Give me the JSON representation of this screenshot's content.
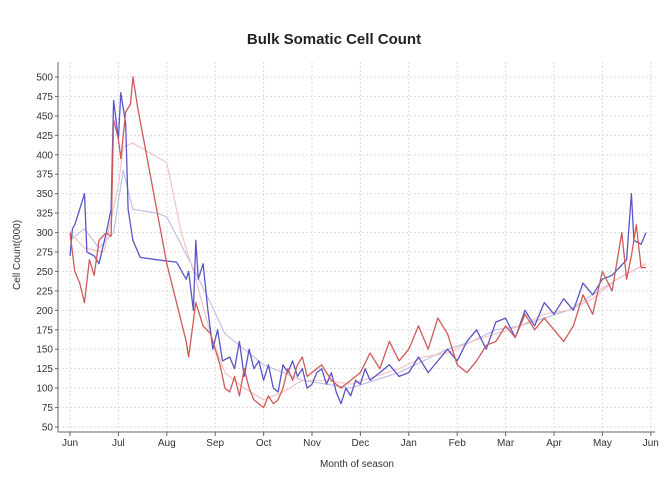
{
  "chart_data": {
    "type": "line",
    "title": "Bulk Somatic Cell Count",
    "xlabel": "Month of season",
    "ylabel": "Cell Count(000)",
    "x_unit": "months since June",
    "xlim": [
      -0.05,
      12.25
    ],
    "ylim": [
      45,
      520
    ],
    "grid": true,
    "x_ticks": [
      {
        "v": 0,
        "label": "Jun"
      },
      {
        "v": 1,
        "label": "Jul"
      },
      {
        "v": 2,
        "label": "Aug"
      },
      {
        "v": 3,
        "label": "Sep"
      },
      {
        "v": 4,
        "label": "Oct"
      },
      {
        "v": 5,
        "label": "Nov"
      },
      {
        "v": 6,
        "label": "Dec"
      },
      {
        "v": 7,
        "label": "Jan"
      },
      {
        "v": 8,
        "label": "Feb"
      },
      {
        "v": 9,
        "label": "Mar"
      },
      {
        "v": 10,
        "label": "Apr"
      },
      {
        "v": 11,
        "label": "May"
      },
      {
        "v": 12,
        "label": "Jun"
      }
    ],
    "y_ticks": [
      50,
      75,
      100,
      125,
      150,
      175,
      200,
      225,
      250,
      275,
      300,
      325,
      350,
      375,
      400,
      425,
      450,
      475,
      500
    ],
    "series": [
      {
        "name": "light-blue",
        "color": "#c0c0ea",
        "width": 1.2,
        "points": [
          [
            0,
            290
          ],
          [
            0.3,
            305
          ],
          [
            0.6,
            280
          ],
          [
            0.9,
            300
          ],
          [
            1.1,
            380
          ],
          [
            1.3,
            330
          ],
          [
            1.8,
            325
          ],
          [
            2.0,
            320
          ],
          [
            2.5,
            260
          ],
          [
            2.9,
            210
          ],
          [
            3.2,
            170
          ],
          [
            3.6,
            150
          ],
          [
            4.0,
            130
          ],
          [
            4.4,
            120
          ],
          [
            4.8,
            110
          ],
          [
            5.3,
            105
          ],
          [
            5.8,
            100
          ],
          [
            6.3,
            110
          ],
          [
            6.8,
            120
          ],
          [
            7.3,
            135
          ],
          [
            7.8,
            150
          ],
          [
            8.3,
            160
          ],
          [
            8.8,
            175
          ],
          [
            9.3,
            180
          ],
          [
            9.8,
            190
          ],
          [
            10.3,
            200
          ],
          [
            10.8,
            220
          ],
          [
            11.3,
            240
          ],
          [
            11.9,
            260
          ]
        ]
      },
      {
        "name": "light-pink",
        "color": "#f2c4c4",
        "width": 1.2,
        "points": [
          [
            0,
            300
          ],
          [
            0.3,
            280
          ],
          [
            0.7,
            275
          ],
          [
            1.0,
            360
          ],
          [
            1.1,
            410
          ],
          [
            1.3,
            415
          ],
          [
            2.0,
            390
          ],
          [
            2.3,
            300
          ],
          [
            2.6,
            240
          ],
          [
            2.9,
            170
          ],
          [
            3.2,
            120
          ],
          [
            3.6,
            100
          ],
          [
            4.0,
            85
          ],
          [
            4.4,
            95
          ],
          [
            4.8,
            110
          ],
          [
            5.3,
            110
          ],
          [
            5.8,
            105
          ],
          [
            6.3,
            115
          ],
          [
            6.8,
            125
          ],
          [
            7.3,
            140
          ],
          [
            7.8,
            145
          ],
          [
            8.3,
            160
          ],
          [
            8.8,
            170
          ],
          [
            9.3,
            180
          ],
          [
            9.8,
            195
          ],
          [
            10.3,
            200
          ],
          [
            10.8,
            215
          ],
          [
            11.3,
            240
          ],
          [
            11.9,
            260
          ]
        ]
      },
      {
        "name": "dark-blue",
        "color": "#5a55c8",
        "width": 1.3,
        "points": [
          [
            0,
            270
          ],
          [
            0.05,
            305
          ],
          [
            0.1,
            310
          ],
          [
            0.2,
            330
          ],
          [
            0.3,
            350
          ],
          [
            0.35,
            275
          ],
          [
            0.5,
            270
          ],
          [
            0.6,
            260
          ],
          [
            0.75,
            300
          ],
          [
            0.85,
            330
          ],
          [
            0.9,
            470
          ],
          [
            1.0,
            420
          ],
          [
            1.05,
            480
          ],
          [
            1.15,
            440
          ],
          [
            1.2,
            330
          ],
          [
            1.3,
            290
          ],
          [
            1.45,
            268
          ],
          [
            1.8,
            265
          ],
          [
            2.2,
            262
          ],
          [
            2.4,
            240
          ],
          [
            2.45,
            250
          ],
          [
            2.55,
            200
          ],
          [
            2.6,
            290
          ],
          [
            2.65,
            240
          ],
          [
            2.75,
            260
          ],
          [
            2.85,
            200
          ],
          [
            2.95,
            150
          ],
          [
            3.05,
            175
          ],
          [
            3.15,
            135
          ],
          [
            3.3,
            140
          ],
          [
            3.4,
            125
          ],
          [
            3.5,
            160
          ],
          [
            3.6,
            115
          ],
          [
            3.7,
            150
          ],
          [
            3.8,
            125
          ],
          [
            3.9,
            135
          ],
          [
            4.0,
            110
          ],
          [
            4.1,
            130
          ],
          [
            4.2,
            100
          ],
          [
            4.3,
            95
          ],
          [
            4.4,
            130
          ],
          [
            4.5,
            120
          ],
          [
            4.6,
            135
          ],
          [
            4.7,
            115
          ],
          [
            4.8,
            125
          ],
          [
            4.9,
            100
          ],
          [
            5.0,
            105
          ],
          [
            5.1,
            120
          ],
          [
            5.2,
            125
          ],
          [
            5.3,
            105
          ],
          [
            5.4,
            120
          ],
          [
            5.5,
            95
          ],
          [
            5.6,
            80
          ],
          [
            5.7,
            100
          ],
          [
            5.8,
            90
          ],
          [
            5.9,
            110
          ],
          [
            6.0,
            105
          ],
          [
            6.1,
            125
          ],
          [
            6.2,
            110
          ],
          [
            6.4,
            120
          ],
          [
            6.6,
            130
          ],
          [
            6.8,
            115
          ],
          [
            7.0,
            120
          ],
          [
            7.2,
            140
          ],
          [
            7.4,
            120
          ],
          [
            7.6,
            135
          ],
          [
            7.8,
            150
          ],
          [
            8.0,
            135
          ],
          [
            8.2,
            160
          ],
          [
            8.4,
            175
          ],
          [
            8.6,
            150
          ],
          [
            8.8,
            185
          ],
          [
            9.0,
            190
          ],
          [
            9.2,
            165
          ],
          [
            9.4,
            200
          ],
          [
            9.6,
            180
          ],
          [
            9.8,
            210
          ],
          [
            10.0,
            195
          ],
          [
            10.2,
            215
          ],
          [
            10.4,
            200
          ],
          [
            10.6,
            235
          ],
          [
            10.8,
            220
          ],
          [
            11.0,
            240
          ],
          [
            11.2,
            245
          ],
          [
            11.5,
            265
          ],
          [
            11.6,
            350
          ],
          [
            11.65,
            290
          ],
          [
            11.8,
            285
          ],
          [
            11.9,
            300
          ]
        ]
      },
      {
        "name": "dark-red",
        "color": "#d05a5a",
        "width": 1.3,
        "points": [
          [
            0,
            300
          ],
          [
            0.1,
            250
          ],
          [
            0.2,
            235
          ],
          [
            0.3,
            210
          ],
          [
            0.4,
            265
          ],
          [
            0.5,
            245
          ],
          [
            0.6,
            290
          ],
          [
            0.75,
            300
          ],
          [
            0.85,
            295
          ],
          [
            0.9,
            445
          ],
          [
            1.0,
            420
          ],
          [
            1.05,
            395
          ],
          [
            1.15,
            455
          ],
          [
            1.25,
            465
          ],
          [
            1.3,
            500
          ],
          [
            1.4,
            460
          ],
          [
            2.0,
            260
          ],
          [
            2.4,
            160
          ],
          [
            2.45,
            140
          ],
          [
            2.6,
            210
          ],
          [
            2.75,
            180
          ],
          [
            2.9,
            170
          ],
          [
            3.0,
            150
          ],
          [
            3.1,
            130
          ],
          [
            3.2,
            100
          ],
          [
            3.3,
            95
          ],
          [
            3.4,
            115
          ],
          [
            3.5,
            90
          ],
          [
            3.6,
            125
          ],
          [
            3.7,
            100
          ],
          [
            3.8,
            85
          ],
          [
            3.9,
            80
          ],
          [
            4.0,
            75
          ],
          [
            4.1,
            90
          ],
          [
            4.2,
            80
          ],
          [
            4.3,
            85
          ],
          [
            4.4,
            100
          ],
          [
            4.5,
            125
          ],
          [
            4.6,
            110
          ],
          [
            4.7,
            130
          ],
          [
            4.8,
            140
          ],
          [
            4.9,
            115
          ],
          [
            5.0,
            120
          ],
          [
            5.2,
            130
          ],
          [
            5.4,
            110
          ],
          [
            5.6,
            100
          ],
          [
            5.8,
            110
          ],
          [
            6.0,
            120
          ],
          [
            6.2,
            145
          ],
          [
            6.4,
            125
          ],
          [
            6.6,
            160
          ],
          [
            6.8,
            135
          ],
          [
            7.0,
            150
          ],
          [
            7.2,
            180
          ],
          [
            7.4,
            150
          ],
          [
            7.6,
            190
          ],
          [
            7.8,
            170
          ],
          [
            8.0,
            130
          ],
          [
            8.2,
            120
          ],
          [
            8.4,
            135
          ],
          [
            8.6,
            155
          ],
          [
            8.8,
            160
          ],
          [
            9.0,
            180
          ],
          [
            9.2,
            165
          ],
          [
            9.4,
            195
          ],
          [
            9.6,
            175
          ],
          [
            9.8,
            190
          ],
          [
            10.0,
            175
          ],
          [
            10.2,
            160
          ],
          [
            10.4,
            180
          ],
          [
            10.6,
            220
          ],
          [
            10.8,
            195
          ],
          [
            11.0,
            250
          ],
          [
            11.2,
            225
          ],
          [
            11.4,
            300
          ],
          [
            11.5,
            240
          ],
          [
            11.6,
            270
          ],
          [
            11.7,
            310
          ],
          [
            11.8,
            255
          ],
          [
            11.9,
            255
          ]
        ]
      }
    ]
  }
}
